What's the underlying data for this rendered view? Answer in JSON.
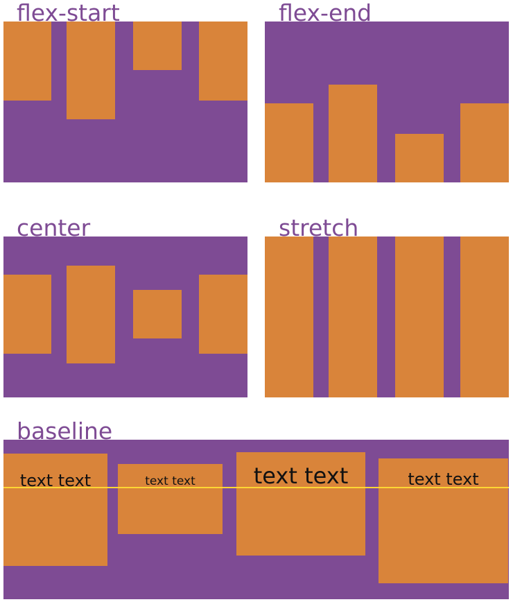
{
  "colors": {
    "container": "#7e4b94",
    "item": "#d9843a",
    "label": "#7e4b94",
    "baseline_line": "#ffd633",
    "text": "#111111"
  },
  "panels": {
    "flex_start": {
      "label": "flex-start"
    },
    "flex_end": {
      "label": "flex-end"
    },
    "center": {
      "label": "center"
    },
    "stretch": {
      "label": "stretch"
    },
    "baseline": {
      "label": "baseline",
      "items": [
        {
          "text": "text text"
        },
        {
          "text": "text text"
        },
        {
          "text": "text text"
        },
        {
          "text": "text text"
        }
      ]
    }
  }
}
